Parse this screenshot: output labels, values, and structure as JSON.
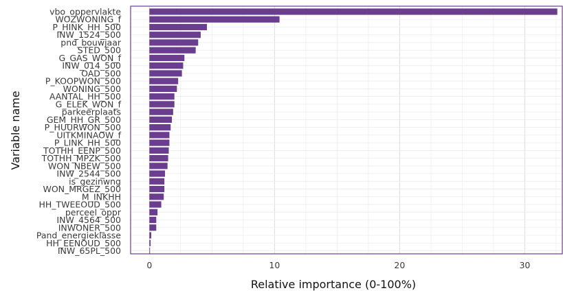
{
  "chart_data": {
    "type": "bar",
    "orientation": "horizontal",
    "xlabel": "Relative importance (0-100%)",
    "ylabel": "Variable name",
    "xlim": [
      -1.5,
      33
    ],
    "xticks": [
      0,
      10,
      20,
      30
    ],
    "grid": true,
    "bar_color": "#6a3d8f",
    "frame_color": "#6a3d8f",
    "categories": [
      "vbo_oppervlakte",
      "WOZWONING_f",
      "P_HINK_HH_500",
      "INW_1524_500",
      "pnd_bouwjaar",
      "STED_500",
      "G_GAS_WON_f",
      "INW_014_500",
      "OAD_500",
      "P_KOOPWON_500",
      "WONING_500",
      "AANTAL_HH_500",
      "G_ELEK_WON_f",
      "parkeerplaats",
      "GEM_HH_GR_500",
      "P_HUURWON_500",
      "UITKMINAOW_f",
      "P_LINK_HH_500",
      "TOTHH_EENP_500",
      "TOTHH_MPZK_500",
      "WON_NBEW_500",
      "INW_2544_500",
      "is_gezinwng",
      "WON_MRGEZ_500",
      "M_INKHH",
      "HH_TWEEOUD_500",
      "perceel_oppr",
      "INW_4564_500",
      "INWONER_500",
      "Pand_energieklasse",
      "HH_EENOUD_500",
      "INW_65PL_500"
    ],
    "values": [
      32.6,
      10.4,
      4.6,
      4.1,
      3.9,
      3.7,
      2.8,
      2.7,
      2.6,
      2.3,
      2.2,
      2.0,
      2.0,
      1.9,
      1.8,
      1.7,
      1.6,
      1.6,
      1.55,
      1.5,
      1.45,
      1.25,
      1.2,
      1.2,
      1.15,
      0.95,
      0.65,
      0.55,
      0.55,
      0.15,
      0.1,
      0.05
    ]
  }
}
